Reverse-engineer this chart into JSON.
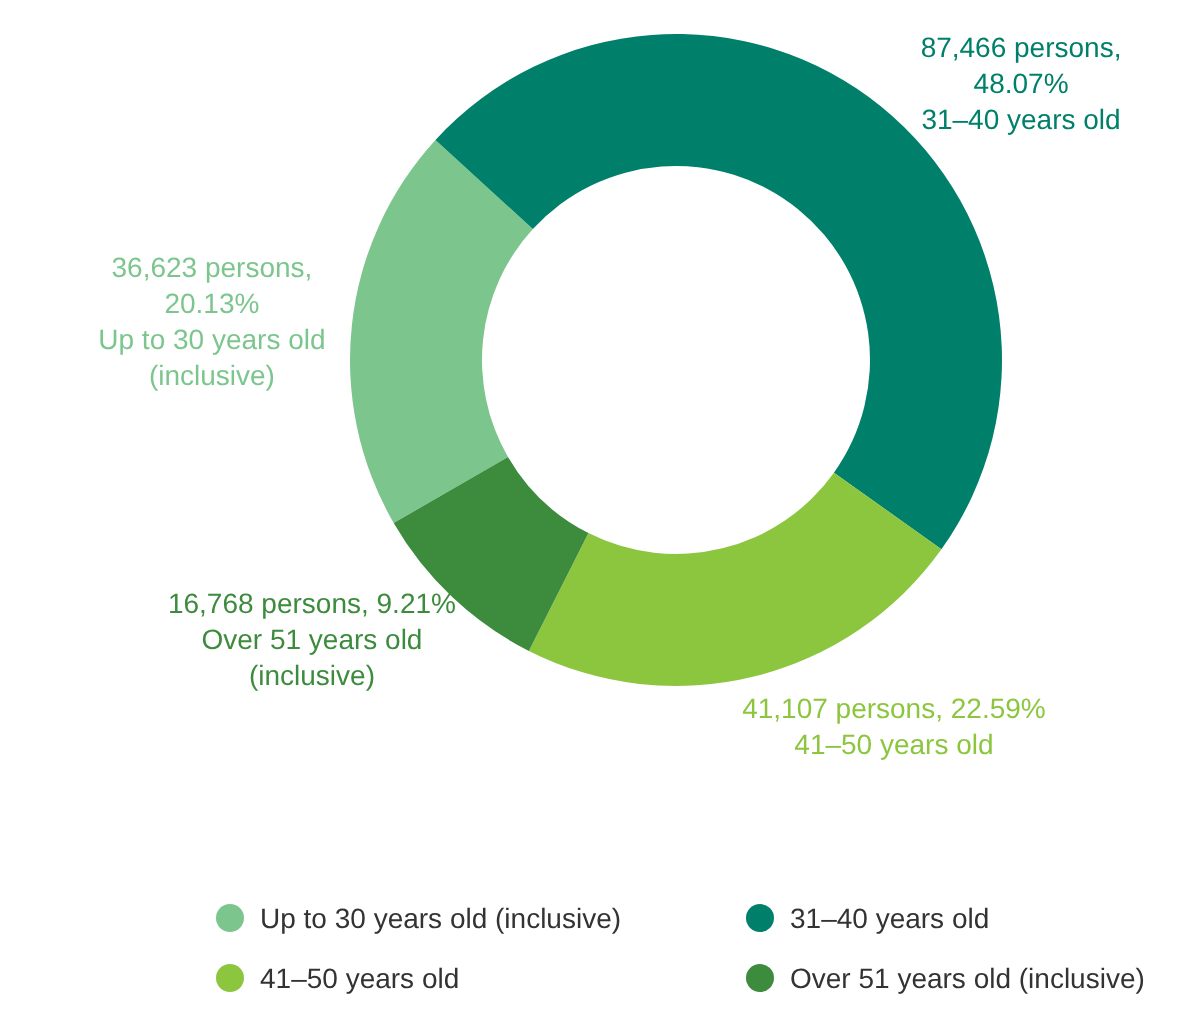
{
  "chart_data": {
    "type": "donut",
    "categories": [
      "Up to 30 years old (inclusive)",
      "31–40 years old",
      "41–50 years old",
      "Over 51 years old (inclusive)"
    ],
    "values": [
      36623,
      87466,
      41107,
      16768
    ],
    "value_labels": [
      "36,623 persons, 20.13%",
      "87,466 persons, 48.07%",
      "41,107 persons, 22.59%",
      "16,768 persons, 9.21%"
    ],
    "colors": [
      "#7cc68e",
      "#00806a",
      "#8cc63f",
      "#3d8b3d"
    ],
    "legend": "bottom"
  }
}
